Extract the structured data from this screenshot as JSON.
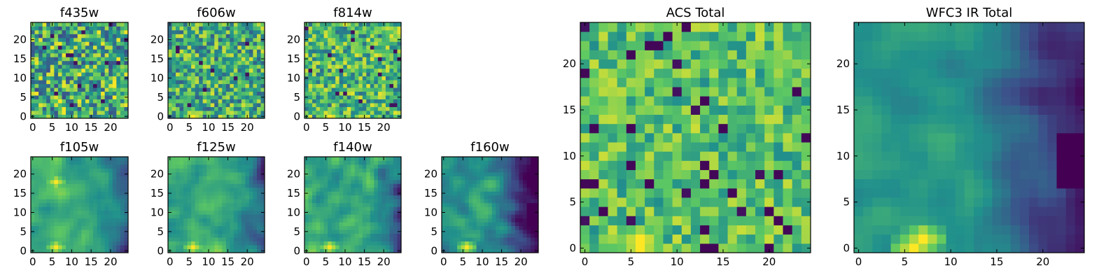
{
  "figure": {
    "description_type": "grid of heatmap panels"
  },
  "colors": {
    "colormap": [
      "#440154",
      "#3b528b",
      "#21918c",
      "#5ec962",
      "#fde725"
    ]
  },
  "chart_data": [
    {
      "id": "f435w",
      "type": "heatmap",
      "title": "f435w",
      "grid": [
        25,
        25
      ],
      "xlim": [
        0,
        24
      ],
      "ylim": [
        0,
        24
      ],
      "xticks": [
        "0",
        "5",
        "10",
        "15",
        "20"
      ],
      "yticks": [
        "0",
        "5",
        "10",
        "15",
        "20"
      ],
      "pattern": "noise",
      "bright_spots": [],
      "dark_region": "none",
      "mean_level": 0.62,
      "noise": 0.38,
      "seed": 11
    },
    {
      "id": "f606w",
      "type": "heatmap",
      "title": "f606w",
      "grid": [
        25,
        25
      ],
      "xlim": [
        0,
        24
      ],
      "ylim": [
        0,
        24
      ],
      "xticks": [
        "0",
        "5",
        "10",
        "15",
        "20"
      ],
      "yticks": [
        "0",
        "5",
        "10",
        "15",
        "20"
      ],
      "pattern": "noise",
      "bright_spots": [
        [
          6,
          0
        ]
      ],
      "dark_region": "none",
      "mean_level": 0.62,
      "noise": 0.32,
      "seed": 23
    },
    {
      "id": "f814w",
      "type": "heatmap",
      "title": "f814w",
      "grid": [
        25,
        25
      ],
      "xlim": [
        0,
        24
      ],
      "ylim": [
        0,
        24
      ],
      "xticks": [
        "0",
        "5",
        "10",
        "15",
        "20"
      ],
      "yticks": [
        "0",
        "5",
        "10",
        "15",
        "20"
      ],
      "pattern": "noise",
      "bright_spots": [
        [
          6,
          0
        ]
      ],
      "dark_region": "none",
      "mean_level": 0.66,
      "noise": 0.3,
      "seed": 37
    },
    {
      "id": "f105w",
      "type": "heatmap",
      "title": "f105w",
      "grid": [
        25,
        25
      ],
      "xlim": [
        0,
        24
      ],
      "ylim": [
        0,
        24
      ],
      "xticks": [
        "0",
        "5",
        "10",
        "15",
        "20"
      ],
      "yticks": [
        "0",
        "5",
        "10",
        "15",
        "20"
      ],
      "pattern": "smooth",
      "bright_spots": [
        [
          6,
          1
        ],
        [
          6,
          18
        ]
      ],
      "dark_region": "right",
      "mean_level": 0.6,
      "noise": 0.2,
      "seed": 41
    },
    {
      "id": "f125w",
      "type": "heatmap",
      "title": "f125w",
      "grid": [
        25,
        25
      ],
      "xlim": [
        0,
        24
      ],
      "ylim": [
        0,
        24
      ],
      "xticks": [
        "0",
        "5",
        "10",
        "15",
        "20"
      ],
      "yticks": [
        "0",
        "5",
        "10",
        "15",
        "20"
      ],
      "pattern": "smooth",
      "bright_spots": [
        [
          6,
          1
        ]
      ],
      "dark_region": "right",
      "mean_level": 0.6,
      "noise": 0.22,
      "seed": 53
    },
    {
      "id": "f140w",
      "type": "heatmap",
      "title": "f140w",
      "grid": [
        25,
        25
      ],
      "xlim": [
        0,
        24
      ],
      "ylim": [
        0,
        24
      ],
      "xticks": [
        "0",
        "5",
        "10",
        "15",
        "20"
      ],
      "yticks": [
        "0",
        "5",
        "10",
        "15",
        "20"
      ],
      "pattern": "smooth",
      "bright_spots": [
        [
          6,
          1
        ]
      ],
      "dark_region": "right",
      "mean_level": 0.6,
      "noise": 0.22,
      "seed": 61
    },
    {
      "id": "f160w",
      "type": "heatmap",
      "title": "f160w",
      "grid": [
        25,
        25
      ],
      "xlim": [
        0,
        24
      ],
      "ylim": [
        0,
        24
      ],
      "xticks": [
        "0",
        "5",
        "10",
        "15",
        "20"
      ],
      "yticks": [
        "0",
        "5",
        "10",
        "15",
        "20"
      ],
      "pattern": "smooth",
      "bright_spots": [
        [
          6,
          1
        ]
      ],
      "dark_region": "right-strong",
      "mean_level": 0.5,
      "noise": 0.2,
      "seed": 71
    },
    {
      "id": "acs_total",
      "type": "heatmap",
      "title": "ACS Total",
      "grid": [
        25,
        25
      ],
      "xlim": [
        0,
        24
      ],
      "ylim": [
        0,
        24
      ],
      "xticks": [
        "0",
        "5",
        "10",
        "15",
        "20"
      ],
      "yticks": [
        "0",
        "5",
        "10",
        "15",
        "20"
      ],
      "pattern": "noise",
      "bright_spots": [
        [
          6,
          0
        ],
        [
          6,
          1
        ]
      ],
      "dark_region": "sparse",
      "mean_level": 0.7,
      "noise": 0.22,
      "seed": 83
    },
    {
      "id": "wfc3_ir_total",
      "type": "heatmap",
      "title": "WFC3 IR Total",
      "grid": [
        25,
        25
      ],
      "xlim": [
        0,
        24
      ],
      "ylim": [
        0,
        24
      ],
      "xticks": [
        "0",
        "5",
        "10",
        "15",
        "20"
      ],
      "yticks": [
        "0",
        "5",
        "10",
        "15",
        "20"
      ],
      "pattern": "smooth",
      "bright_spots": [
        [
          6,
          0
        ],
        [
          7,
          1
        ]
      ],
      "dark_region": "right-strong",
      "mean_level": 0.52,
      "noise": 0.12,
      "seed": 97
    }
  ]
}
